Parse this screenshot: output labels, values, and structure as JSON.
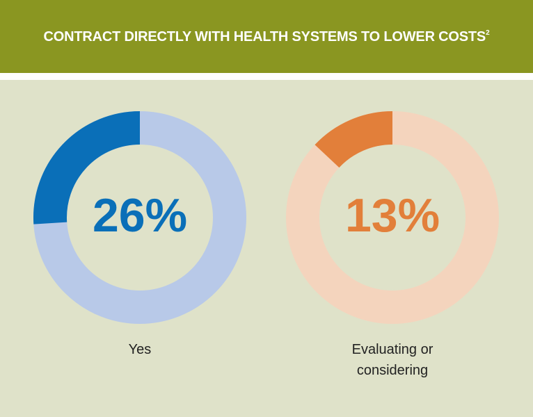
{
  "title": "CONTRACT DIRECTLY WITH HEALTH SYSTEMS TO LOWER COSTS",
  "title_superscript": "2",
  "chart_data": [
    {
      "type": "donut",
      "label": "Yes",
      "values": [
        26
      ],
      "value_labels": [
        "26%"
      ],
      "color": "#0a6fb8",
      "track_color": "#b8c9e8"
    },
    {
      "type": "donut",
      "label": "Evaluating or considering",
      "values": [
        13
      ],
      "value_labels": [
        "13%"
      ],
      "color": "#e27f3a",
      "track_color": "#f4d4bd"
    }
  ]
}
